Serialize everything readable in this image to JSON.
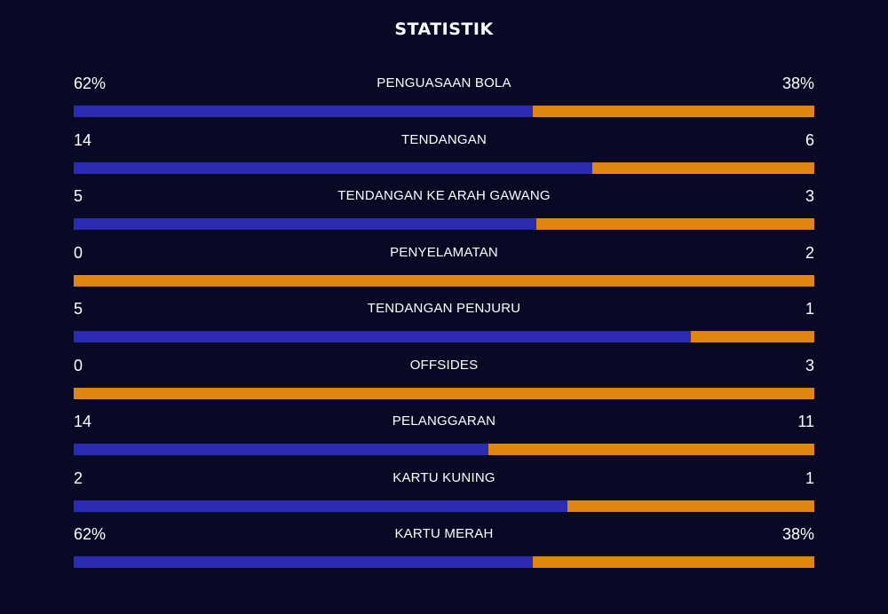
{
  "title": "STATISTIK",
  "colors": {
    "background": "#080925",
    "home": "#2b2bb4",
    "away": "#e0860f",
    "text": "#ffffff"
  },
  "stats": [
    {
      "label": "PENGUASAAN BOLA",
      "home": "62%",
      "away": "38%",
      "home_fraction": 0.62
    },
    {
      "label": "TENDANGAN",
      "home": "14",
      "away": "6",
      "home_fraction": 0.7
    },
    {
      "label": "TENDANGAN KE ARAH GAWANG",
      "home": "5",
      "away": "3",
      "home_fraction": 0.625
    },
    {
      "label": "PENYELAMATAN",
      "home": "0",
      "away": "2",
      "home_fraction": 0.0
    },
    {
      "label": "TENDANGAN PENJURU",
      "home": "5",
      "away": "1",
      "home_fraction": 0.8333
    },
    {
      "label": "OFFSIDES",
      "home": "0",
      "away": "3",
      "home_fraction": 0.0
    },
    {
      "label": "PELANGGARAN",
      "home": "14",
      "away": "11",
      "home_fraction": 0.56
    },
    {
      "label": "KARTU KUNING",
      "home": "2",
      "away": "1",
      "home_fraction": 0.6667
    },
    {
      "label": "KARTU MERAH",
      "home": "62%",
      "away": "38%",
      "home_fraction": 0.62
    }
  ]
}
